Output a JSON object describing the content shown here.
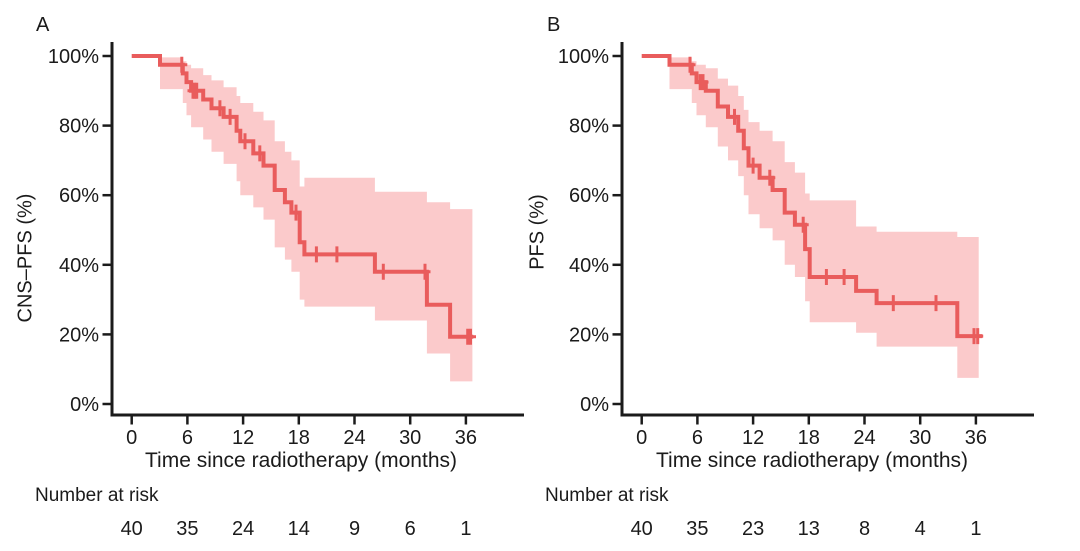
{
  "figure": {
    "background": "#ffffff",
    "axis_color": "#1b1b1b",
    "line_color": "#e95c5c",
    "ci_band_color": "#fbcacb"
  },
  "chart_data": [
    {
      "type": "line",
      "subtype": "kaplan-meier-step",
      "panel_letter": "A",
      "ylabel": "CNS–PFS (%)",
      "xlabel": "Time since radiotherapy (months)",
      "risk_label": "Number at risk",
      "xlim": [
        0,
        42
      ],
      "ylim": [
        0,
        100
      ],
      "x_ticks": [
        0,
        6,
        12,
        18,
        24,
        30,
        36
      ],
      "y_tick_values": [
        0,
        20,
        40,
        60,
        80,
        100
      ],
      "y_tick_labels": [
        "0%",
        "20%",
        "40%",
        "60%",
        "80%",
        "100%"
      ],
      "grid": false,
      "legend": "none",
      "number_at_risk": [
        40,
        35,
        24,
        14,
        9,
        6,
        1
      ],
      "series": {
        "name": "CNS-PFS",
        "color": "#e95c5c",
        "band_color": "#fbcacb",
        "end_t": 36.8,
        "band_end_t": 36.7,
        "steps": [
          {
            "t": 0,
            "s": 100,
            "lo": 100,
            "hi": 100
          },
          {
            "t": 3.05,
            "s": 97.5,
            "lo": 90.5,
            "hi": 99.6
          },
          {
            "t": 5.5,
            "s": 95,
            "lo": 86.5,
            "hi": 98.5
          },
          {
            "t": 5.9,
            "s": 92.5,
            "lo": 83,
            "hi": 97.5
          },
          {
            "t": 6.4,
            "s": 90,
            "lo": 79.5,
            "hi": 96.5
          },
          {
            "t": 7.7,
            "s": 87.5,
            "lo": 76,
            "hi": 94.5
          },
          {
            "t": 8.6,
            "s": 85,
            "lo": 72.5,
            "hi": 93
          },
          {
            "t": 9.9,
            "s": 82.5,
            "lo": 69,
            "hi": 91
          },
          {
            "t": 11.3,
            "s": 78.5,
            "lo": 64,
            "hi": 88.5
          },
          {
            "t": 11.7,
            "s": 75.5,
            "lo": 60,
            "hi": 86.5
          },
          {
            "t": 13.1,
            "s": 72,
            "lo": 56.5,
            "hi": 84
          },
          {
            "t": 14.2,
            "s": 68.5,
            "lo": 53,
            "hi": 81.5
          },
          {
            "t": 15.4,
            "s": 61.5,
            "lo": 45,
            "hi": 75.5
          },
          {
            "t": 16.5,
            "s": 58,
            "lo": 41.5,
            "hi": 72.5
          },
          {
            "t": 17.2,
            "s": 55,
            "lo": 38,
            "hi": 70
          },
          {
            "t": 18.1,
            "s": 46.5,
            "lo": 30,
            "hi": 62.5
          },
          {
            "t": 18.6,
            "s": 43,
            "lo": 28,
            "hi": 65
          },
          {
            "t": 26.2,
            "s": 38,
            "lo": 24,
            "hi": 61
          },
          {
            "t": 31.8,
            "s": 28.5,
            "lo": 14.5,
            "hi": 58
          },
          {
            "t": 34.3,
            "s": 19.3,
            "lo": 6.5,
            "hi": 56
          }
        ],
        "censors": [
          [
            5.4,
            97.5
          ],
          [
            6.6,
            90
          ],
          [
            6.8,
            90
          ],
          [
            7.0,
            90
          ],
          [
            9.5,
            85
          ],
          [
            10.6,
            82.5
          ],
          [
            12.2,
            75.5
          ],
          [
            13.8,
            72
          ],
          [
            17.7,
            55
          ],
          [
            19.9,
            43
          ],
          [
            22.1,
            43
          ],
          [
            27.1,
            38
          ],
          [
            31.6,
            38
          ],
          [
            36.2,
            19.3
          ],
          [
            36.5,
            19.3
          ]
        ]
      }
    },
    {
      "type": "line",
      "subtype": "kaplan-meier-step",
      "panel_letter": "B",
      "ylabel": "PFS (%)",
      "xlabel": "Time since radiotherapy (months)",
      "risk_label": "Number at risk",
      "xlim": [
        0,
        42
      ],
      "ylim": [
        0,
        100
      ],
      "x_ticks": [
        0,
        6,
        12,
        18,
        24,
        30,
        36
      ],
      "y_tick_values": [
        0,
        20,
        40,
        60,
        80,
        100
      ],
      "y_tick_labels": [
        "0%",
        "20%",
        "40%",
        "60%",
        "80%",
        "100%"
      ],
      "grid": false,
      "legend": "none",
      "number_at_risk": [
        40,
        35,
        23,
        13,
        8,
        4,
        1
      ],
      "series": {
        "name": "PFS",
        "color": "#e95c5c",
        "band_color": "#fbcacb",
        "end_t": 36.7,
        "band_end_t": 36.3,
        "steps": [
          {
            "t": 0,
            "s": 100,
            "lo": 100,
            "hi": 100
          },
          {
            "t": 3.0,
            "s": 97.5,
            "lo": 90.5,
            "hi": 99.6
          },
          {
            "t": 5.4,
            "s": 95,
            "lo": 86.5,
            "hi": 98.5
          },
          {
            "t": 5.9,
            "s": 92.5,
            "lo": 83,
            "hi": 97.5
          },
          {
            "t": 6.9,
            "s": 90,
            "lo": 79.5,
            "hi": 96.5
          },
          {
            "t": 8.2,
            "s": 85.5,
            "lo": 74,
            "hi": 93.5
          },
          {
            "t": 9.3,
            "s": 82.5,
            "lo": 70,
            "hi": 91.5
          },
          {
            "t": 10.4,
            "s": 78.5,
            "lo": 65.5,
            "hi": 88.5
          },
          {
            "t": 11.0,
            "s": 73.5,
            "lo": 60,
            "hi": 84.5
          },
          {
            "t": 11.5,
            "s": 68.5,
            "lo": 54.5,
            "hi": 81
          },
          {
            "t": 12.7,
            "s": 65,
            "lo": 50.5,
            "hi": 78.5
          },
          {
            "t": 14.1,
            "s": 61.5,
            "lo": 47,
            "hi": 75.5
          },
          {
            "t": 15.4,
            "s": 55,
            "lo": 40,
            "hi": 69.5
          },
          {
            "t": 16.5,
            "s": 51.5,
            "lo": 36.5,
            "hi": 66.5
          },
          {
            "t": 17.6,
            "s": 44.5,
            "lo": 29.5,
            "hi": 60.5
          },
          {
            "t": 18.1,
            "s": 36.5,
            "lo": 23.5,
            "hi": 58.5
          },
          {
            "t": 23.1,
            "s": 32.5,
            "lo": 20.5,
            "hi": 51
          },
          {
            "t": 25.3,
            "s": 29,
            "lo": 16.5,
            "hi": 49.5
          },
          {
            "t": 34.0,
            "s": 19.5,
            "lo": 7.5,
            "hi": 48
          }
        ],
        "censors": [
          [
            5.2,
            97.5
          ],
          [
            6.3,
            92.5
          ],
          [
            6.6,
            92.5
          ],
          [
            10.0,
            82.5
          ],
          [
            12.0,
            68.5
          ],
          [
            13.8,
            65
          ],
          [
            17.4,
            51.5
          ],
          [
            19.9,
            36.5
          ],
          [
            21.8,
            36.5
          ],
          [
            27.1,
            29
          ],
          [
            31.7,
            29
          ],
          [
            35.8,
            19.5
          ],
          [
            36.2,
            19.5
          ]
        ]
      }
    }
  ]
}
